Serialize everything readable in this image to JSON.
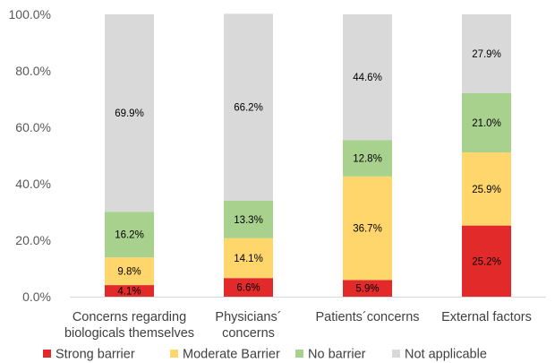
{
  "chart_data": {
    "type": "bar",
    "stacked": true,
    "categories": [
      [
        "Concerns regarding",
        "biologicals themselves"
      ],
      [
        "Physicians´",
        "concerns"
      ],
      [
        "Patients´concerns"
      ],
      [
        "External factors"
      ]
    ],
    "series": [
      {
        "name": "Strong barrier",
        "color": "#e32a2a",
        "values": [
          4.1,
          6.6,
          5.9,
          25.2
        ]
      },
      {
        "name": "Moderate Barrier",
        "color": "#ffd66b",
        "values": [
          9.8,
          14.1,
          36.7,
          25.9
        ]
      },
      {
        "name": "No barrier",
        "color": "#a9d18e",
        "values": [
          16.2,
          13.3,
          12.8,
          21.0
        ]
      },
      {
        "name": "Not applicable",
        "color": "#d9d9d9",
        "values": [
          69.9,
          66.2,
          44.6,
          27.9
        ]
      }
    ],
    "ylim": [
      0,
      100
    ],
    "yticks": [
      "0.0%",
      "20.0%",
      "40.0%",
      "60.0%",
      "80.0%",
      "100.0%"
    ],
    "value_format": "percent_1dp",
    "legend_position": "bottom",
    "grid": false
  }
}
